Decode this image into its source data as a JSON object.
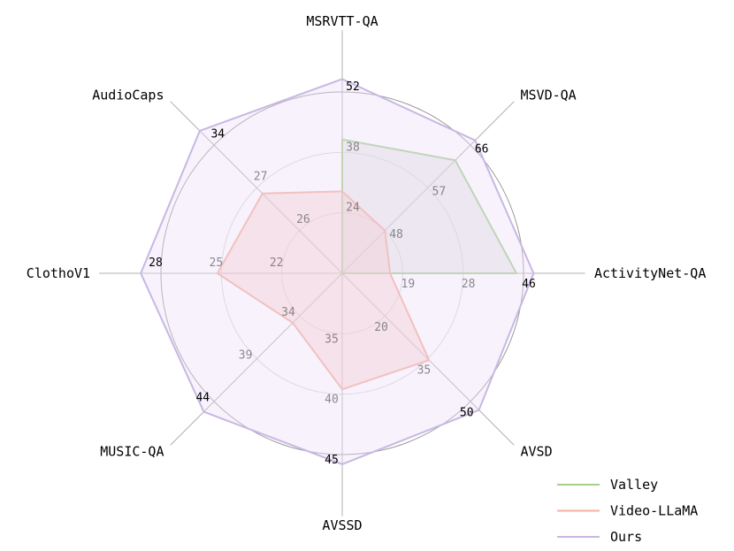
{
  "chart_data": {
    "type": "radar",
    "axes": [
      {
        "name": "MSRVTT-QA",
        "ticks": [
          "24",
          "38",
          "52"
        ],
        "min": 10,
        "max": 52
      },
      {
        "name": "MSVD-QA",
        "ticks": [
          "48",
          "57",
          "66"
        ],
        "min": 39,
        "max": 66
      },
      {
        "name": "ActivityNet-QA",
        "ticks": [
          "19",
          "28",
          "46"
        ],
        "min": 10,
        "max": 46
      },
      {
        "name": "AVSD",
        "ticks": [
          "20",
          "35",
          "50"
        ],
        "min": 5,
        "max": 50
      },
      {
        "name": "AVSSD",
        "ticks": [
          "35",
          "40",
          "45"
        ],
        "min": 30,
        "max": 45
      },
      {
        "name": "MUSIC-QA",
        "ticks": [
          "34",
          "39",
          "44"
        ],
        "min": 29,
        "max": 44
      },
      {
        "name": "ClothoV1",
        "ticks": [
          "22",
          "25",
          "28"
        ],
        "min": 19,
        "max": 28
      },
      {
        "name": "AudioCaps",
        "ticks": [
          "26",
          "27",
          "34"
        ],
        "min": 25,
        "max": 34
      }
    ],
    "series": [
      {
        "name": "Valley",
        "color": "#a3d18d",
        "fill": "#d6d6d6",
        "values": [
          41.0,
          62.8,
          44.6,
          null,
          null,
          null,
          null,
          null
        ]
      },
      {
        "name": "Video-LLaMA",
        "color": "#f4b19c",
        "fill": "#f9c3b8",
        "values": [
          29.0,
          48.0,
          19.5,
          35.5,
          39.6,
          34.8,
          25.2,
          30.6
        ]
      },
      {
        "name": "Ours",
        "color": "#c8b7e3",
        "fill": "#ecdcfa",
        "values": [
          55.0,
          67.0,
          48.0,
          53.0,
          45.8,
          45.2,
          29.0,
          35.0
        ]
      }
    ],
    "legend_position": "bottom-right"
  }
}
